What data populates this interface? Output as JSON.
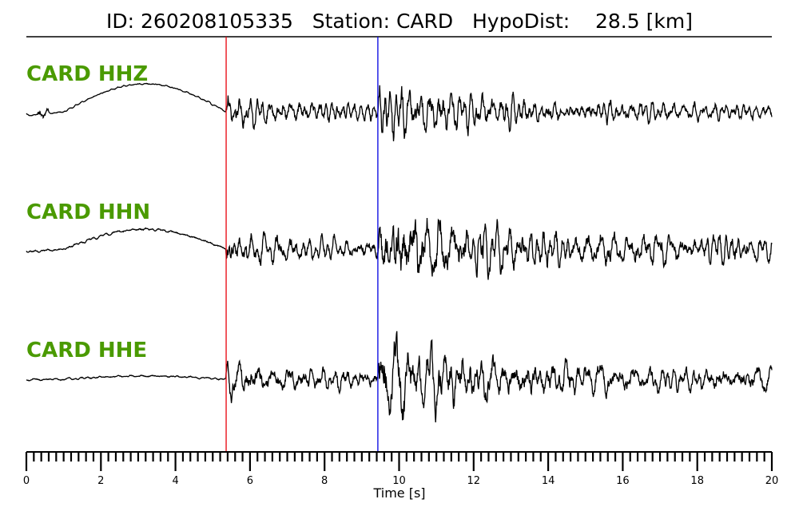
{
  "chart_data": {
    "type": "line",
    "title": "ID: 260208105335   Station: CARD   HypoDist:    28.5 [km]",
    "xlabel": "Time [s]",
    "xlim": [
      0,
      20
    ],
    "xticks": [
      "0",
      "2",
      "4",
      "6",
      "8",
      "10",
      "12",
      "14",
      "16",
      "18",
      "20"
    ],
    "minor_tick_step": 0.2,
    "series": [
      {
        "name": "CARD HHZ"
      },
      {
        "name": "CARD HHN"
      },
      {
        "name": "CARD HHE"
      }
    ],
    "picks": [
      {
        "phase": "P",
        "time": 5.36,
        "color": "#e8000b"
      },
      {
        "phase": "S",
        "time": 9.43,
        "color": "#0000e0"
      }
    ],
    "trace_color": "#000000",
    "label_color": "#4a9a00"
  }
}
